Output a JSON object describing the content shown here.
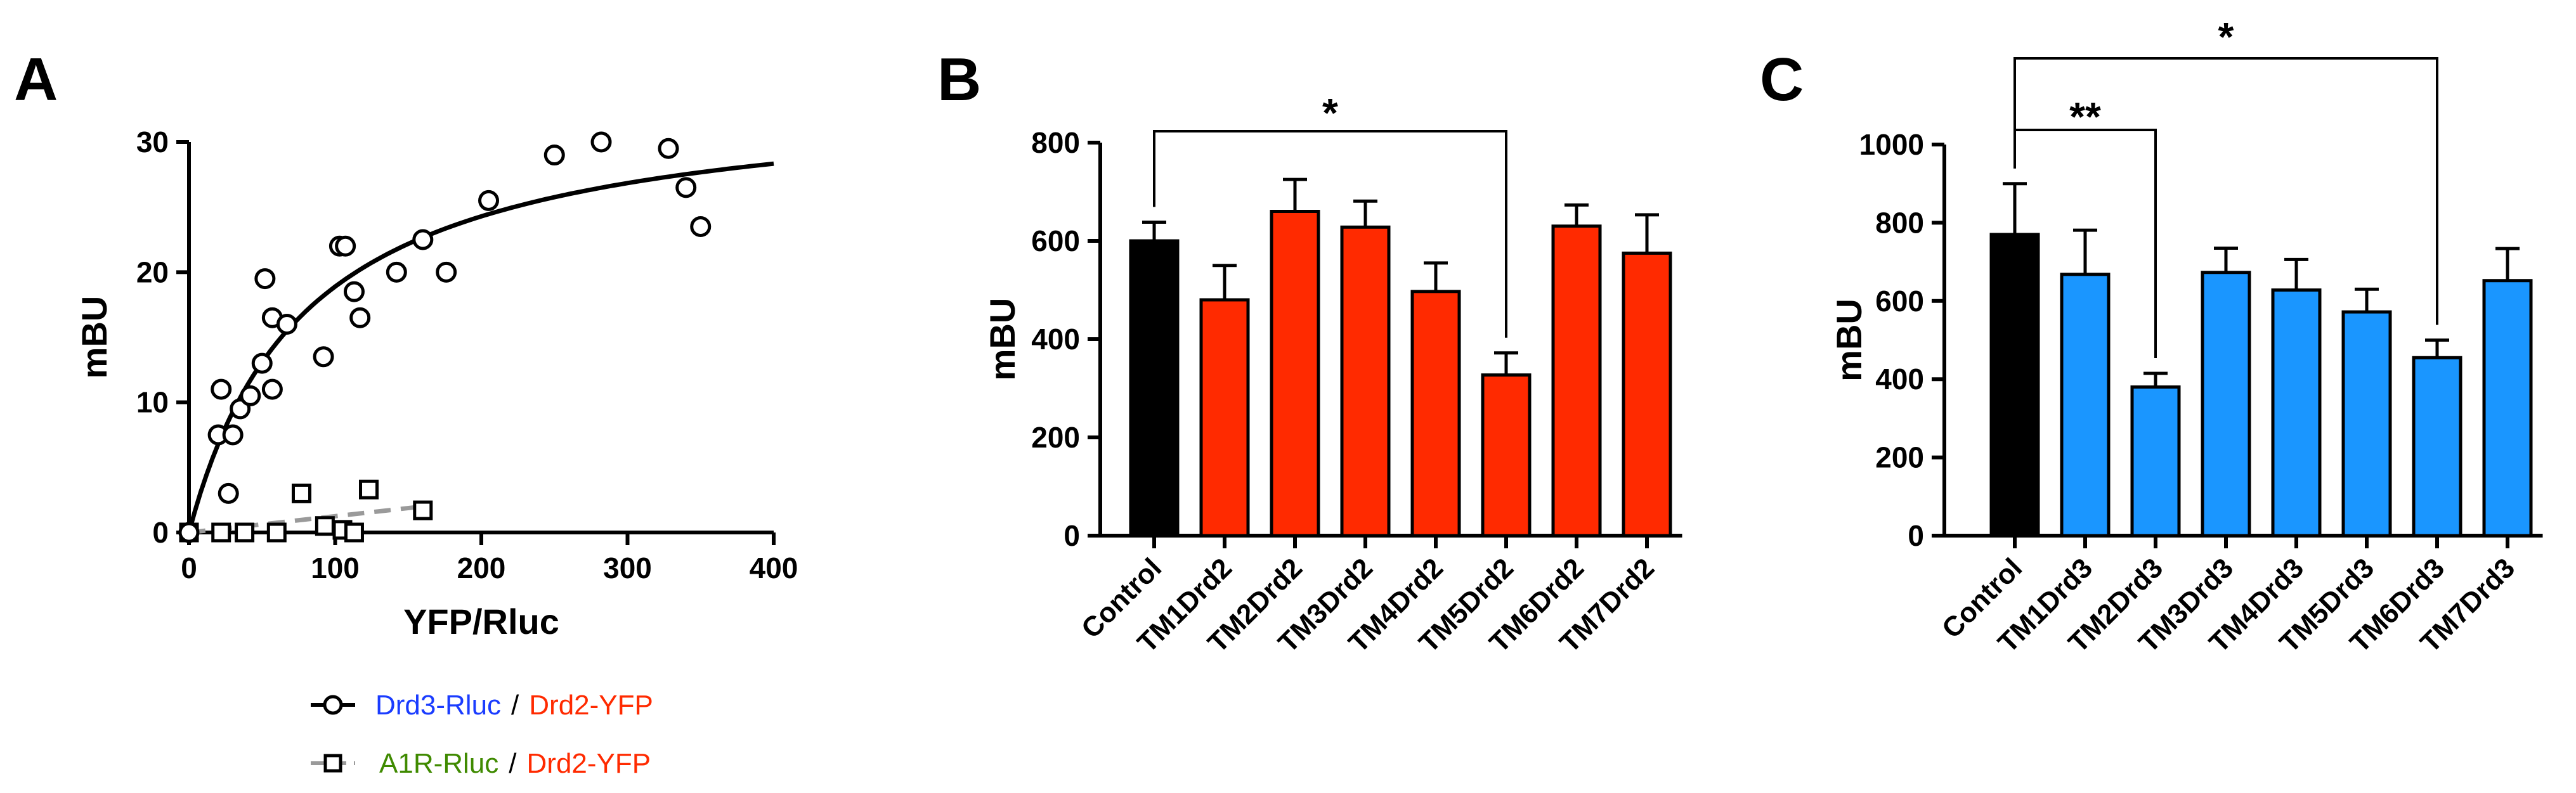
{
  "chart_data": [
    {
      "panel": "A",
      "type": "scatter",
      "xlabel": "YFP/Rluc",
      "ylabel": "mBU",
      "xlim": [
        0,
        400
      ],
      "ylim": [
        0,
        30
      ],
      "xticks": [
        0,
        100,
        200,
        300,
        400
      ],
      "yticks": [
        0,
        10,
        20,
        30
      ],
      "series": [
        {
          "name": "Drd3-Rluc / Drd2-YFP",
          "legend_parts": [
            "Drd3-Rluc",
            "/",
            "Drd2-YFP"
          ],
          "marker": "circle",
          "line": "solid",
          "fit": {
            "model": "hyperbola",
            "bmax": 34,
            "kd": 80
          },
          "points": [
            [
              0,
              0
            ],
            [
              20,
              7.5
            ],
            [
              22,
              11
            ],
            [
              27,
              3
            ],
            [
              30,
              7.5
            ],
            [
              35,
              9.5
            ],
            [
              42,
              10.5
            ],
            [
              50,
              13
            ],
            [
              52,
              19.5
            ],
            [
              57,
              16.5
            ],
            [
              57,
              11
            ],
            [
              67,
              16
            ],
            [
              92,
              13.5
            ],
            [
              103,
              22
            ],
            [
              107,
              22
            ],
            [
              113,
              18.5
            ],
            [
              117,
              16.5
            ],
            [
              142,
              20
            ],
            [
              160,
              22.5
            ],
            [
              176,
              20
            ],
            [
              205,
              25.5
            ],
            [
              250,
              29
            ],
            [
              282,
              30
            ],
            [
              328,
              29.5
            ],
            [
              340,
              26.5
            ],
            [
              350,
              23.5
            ]
          ]
        },
        {
          "name": "A1R-Rluc / Drd2-YFP",
          "legend_parts": [
            "A1R-Rluc",
            "/",
            "Drd2-YFP"
          ],
          "marker": "square",
          "line": "dashed",
          "fit": {
            "model": "linear",
            "x": [
              0,
              160
            ],
            "y": [
              0,
              2
            ]
          },
          "points": [
            [
              0,
              0
            ],
            [
              22,
              0
            ],
            [
              38,
              0
            ],
            [
              60,
              0
            ],
            [
              77,
              3
            ],
            [
              93,
              0.5
            ],
            [
              105,
              0.2
            ],
            [
              113,
              0
            ],
            [
              123,
              3.3
            ],
            [
              160,
              1.7
            ]
          ]
        }
      ]
    },
    {
      "panel": "B",
      "type": "bar",
      "ylabel": "mBU",
      "ylim": [
        0,
        800
      ],
      "yticks": [
        0,
        200,
        400,
        600,
        800
      ],
      "categories": [
        "Control",
        "TM1Drd2",
        "TM2Drd2",
        "TM3Drd2",
        "TM4Drd2",
        "TM5Drd2",
        "TM6Drd2",
        "TM7Drd2"
      ],
      "values": [
        600,
        480,
        660,
        628,
        497,
        327,
        630,
        575
      ],
      "errors": [
        38,
        70,
        65,
        53,
        58,
        45,
        43,
        78
      ],
      "colors": [
        "#000000",
        "#ff2a00",
        "#ff2a00",
        "#ff2a00",
        "#ff2a00",
        "#ff2a00",
        "#ff2a00",
        "#ff2a00"
      ],
      "significance": [
        {
          "from": 0,
          "to": 5,
          "label": "*"
        }
      ]
    },
    {
      "panel": "C",
      "type": "bar",
      "ylabel": "mBU",
      "ylim": [
        0,
        1000
      ],
      "yticks": [
        0,
        200,
        400,
        600,
        800,
        1000
      ],
      "categories": [
        "Control",
        "TM1Drd3",
        "TM2Drd3",
        "TM3Drd3",
        "TM4Drd3",
        "TM5Drd3",
        "TM6Drd3",
        "TM7Drd3"
      ],
      "values": [
        770,
        668,
        380,
        673,
        628,
        572,
        455,
        652
      ],
      "errors": [
        130,
        113,
        35,
        62,
        78,
        58,
        45,
        82
      ],
      "colors": [
        "#000000",
        "#1a96ff",
        "#1a96ff",
        "#1a96ff",
        "#1a96ff",
        "#1a96ff",
        "#1a96ff",
        "#1a96ff"
      ],
      "significance": [
        {
          "from": 0,
          "to": 2,
          "label": "**"
        },
        {
          "from": 0,
          "to": 6,
          "label": "*"
        }
      ]
    }
  ],
  "legend_colors": {
    "drd3_rluc": "#1a3cff",
    "a1r_rluc": "#3f8a00",
    "drd2_yfp": "#ff2a00",
    "slash": "#000000",
    "series2_line": "#9a9a9a"
  }
}
